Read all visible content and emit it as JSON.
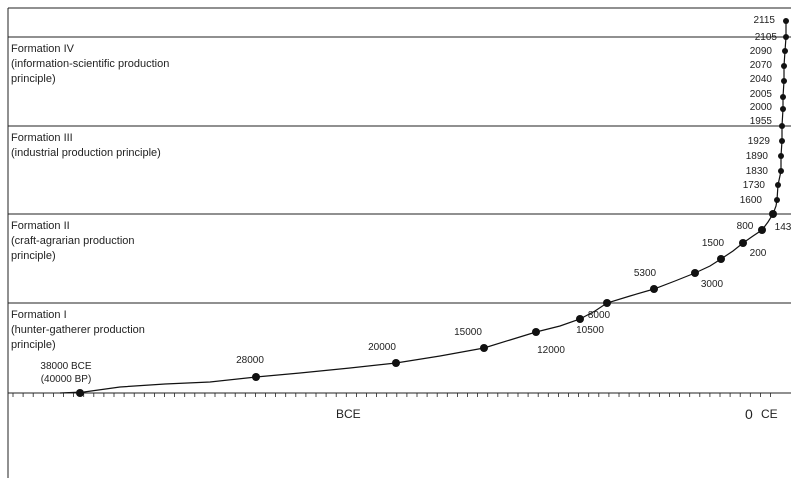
{
  "chart_data": {
    "type": "line",
    "title": "",
    "xlabel": "",
    "ylabel": "",
    "x_axis_labels": {
      "left": "BCE",
      "zero": "0",
      "right": "CE"
    },
    "formations": [
      {
        "name": "Formation I",
        "lines": [
          "Formation I",
          "(hunter-gatherer production",
          "principle)"
        ]
      },
      {
        "name": "Formation II",
        "lines": [
          "Formation II",
          "(craft-agrarian production",
          "principle)"
        ]
      },
      {
        "name": "Formation III",
        "lines": [
          "Formation III",
          "(industrial production principle)"
        ]
      },
      {
        "name": "Formation IV",
        "lines": [
          "Formation IV",
          "(information-scientific production",
          "principle)"
        ]
      }
    ],
    "formation_boundaries": [
      {
        "label": "10500",
        "formation": 1
      },
      {
        "label": "143",
        "formation": 2
      },
      {
        "label": "1955",
        "formation": 3
      }
    ],
    "points": [
      {
        "label": "38000 BCE",
        "label2": "(40000 BP)"
      },
      {
        "label": "28000"
      },
      {
        "label": "20000"
      },
      {
        "label": "15000"
      },
      {
        "label": "12000"
      },
      {
        "label": "10500"
      },
      {
        "label": "8000"
      },
      {
        "label": "5300"
      },
      {
        "label": "3000"
      },
      {
        "label": "1500"
      },
      {
        "label": "200"
      },
      {
        "label": "800"
      },
      {
        "label": "143"
      },
      {
        "label": "1600"
      },
      {
        "label": "1730"
      },
      {
        "label": "1830"
      },
      {
        "label": "1890"
      },
      {
        "label": "1929"
      },
      {
        "label": "1955"
      },
      {
        "label": "2000"
      },
      {
        "label": "2005"
      },
      {
        "label": "2040"
      },
      {
        "label": "2070"
      },
      {
        "label": "2090"
      },
      {
        "label": "2105"
      },
      {
        "label": "2115"
      }
    ],
    "grid": false,
    "legend": "none"
  }
}
